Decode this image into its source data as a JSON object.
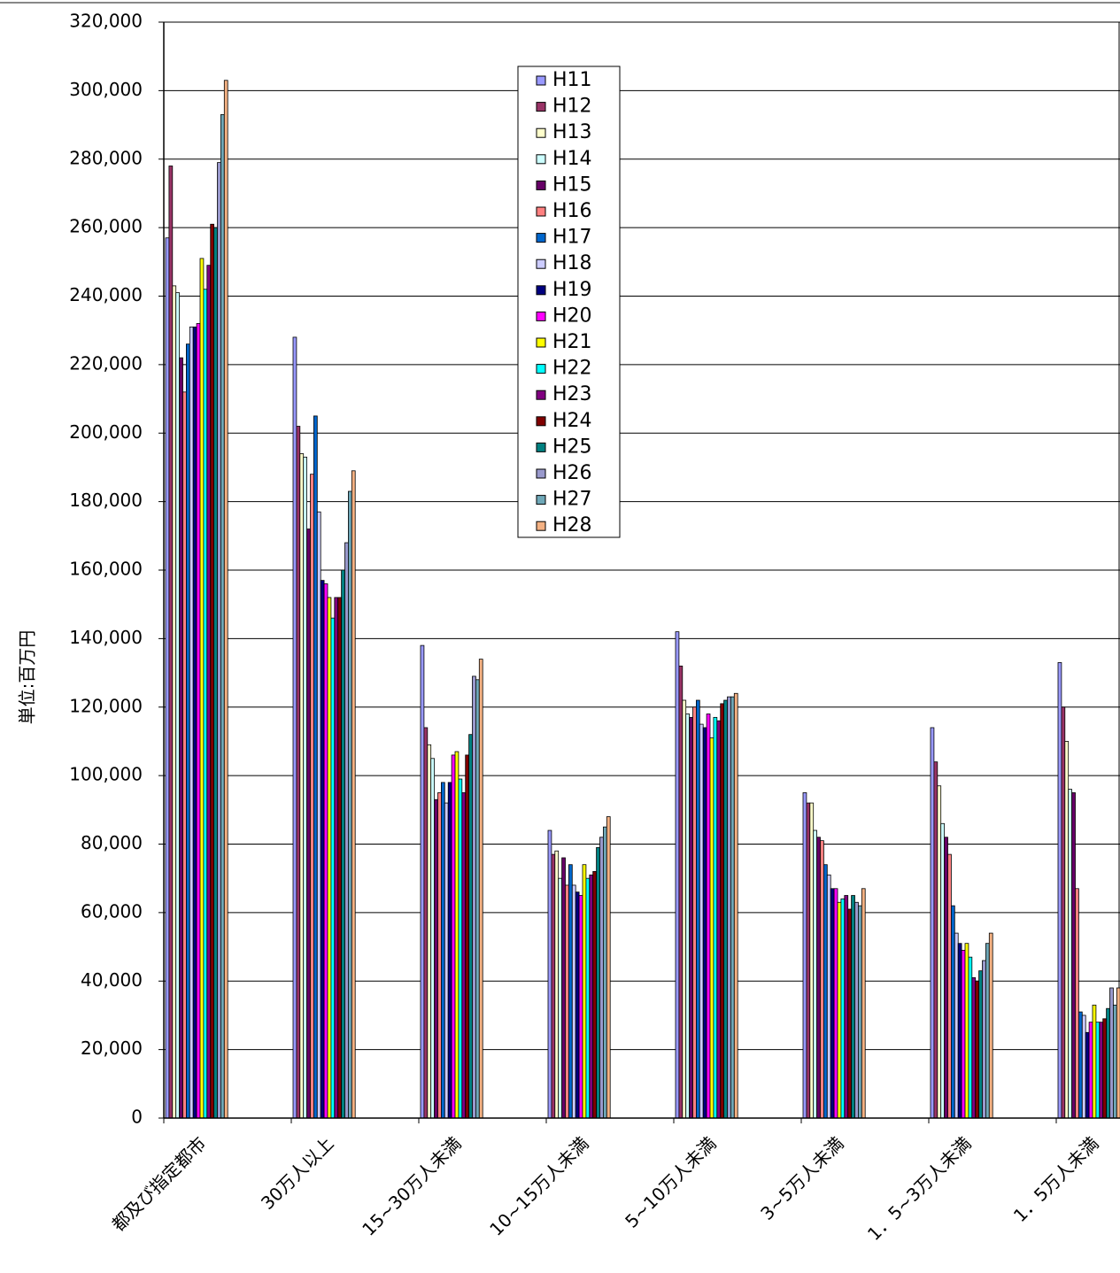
{
  "chart_data": {
    "type": "bar",
    "y_label": "単位:百万円",
    "categories": [
      "都及び指定都市",
      "30万人以上",
      "15~30万人未満",
      "10~15万人未満",
      "5~10万人未満",
      "3~5万人未満",
      "1．5~3万人未満",
      "1．5万人未満"
    ],
    "series": [
      {
        "name": "H11",
        "color": "#9999ff",
        "values": [
          257000,
          228000,
          138000,
          84000,
          142000,
          95000,
          114000,
          133000
        ]
      },
      {
        "name": "H12",
        "color": "#993366",
        "values": [
          278000,
          202000,
          114000,
          77000,
          132000,
          92000,
          104000,
          120000
        ]
      },
      {
        "name": "H13",
        "color": "#ffffcc",
        "values": [
          243000,
          194000,
          109000,
          78000,
          122000,
          92000,
          97000,
          110000
        ]
      },
      {
        "name": "H14",
        "color": "#ccffff",
        "values": [
          241000,
          193000,
          105000,
          70000,
          118000,
          84000,
          86000,
          96000
        ]
      },
      {
        "name": "H15",
        "color": "#660066",
        "values": [
          222000,
          172000,
          93000,
          76000,
          117000,
          82000,
          82000,
          95000
        ]
      },
      {
        "name": "H16",
        "color": "#ff8080",
        "values": [
          212000,
          188000,
          95000,
          68000,
          120000,
          81000,
          77000,
          67000
        ]
      },
      {
        "name": "H17",
        "color": "#0066cc",
        "values": [
          226000,
          205000,
          98000,
          74000,
          122000,
          74000,
          62000,
          31000
        ]
      },
      {
        "name": "H18",
        "color": "#ccccff",
        "values": [
          231000,
          177000,
          92000,
          68000,
          115000,
          71000,
          54000,
          30000
        ]
      },
      {
        "name": "H19",
        "color": "#000080",
        "values": [
          231000,
          157000,
          98000,
          66000,
          114000,
          67000,
          51000,
          25000
        ]
      },
      {
        "name": "H20",
        "color": "#ff00ff",
        "values": [
          232000,
          156000,
          106000,
          65000,
          118000,
          67000,
          49000,
          28000
        ]
      },
      {
        "name": "H21",
        "color": "#ffff00",
        "values": [
          251000,
          152000,
          107000,
          74000,
          111000,
          63000,
          51000,
          33000
        ]
      },
      {
        "name": "H22",
        "color": "#00ffff",
        "values": [
          242000,
          146000,
          99000,
          70000,
          117000,
          64000,
          47000,
          28000
        ]
      },
      {
        "name": "H23",
        "color": "#800080",
        "values": [
          249000,
          152000,
          95000,
          71000,
          116000,
          65000,
          41000,
          28000
        ]
      },
      {
        "name": "H24",
        "color": "#800000",
        "values": [
          261000,
          152000,
          106000,
          72000,
          121000,
          61000,
          40000,
          29000
        ]
      },
      {
        "name": "H25",
        "color": "#008080",
        "values": [
          260000,
          160000,
          112000,
          79000,
          122000,
          65000,
          43000,
          32000
        ]
      },
      {
        "name": "H26",
        "color": "#9999cc",
        "values": [
          279000,
          168000,
          129000,
          82000,
          123000,
          63000,
          46000,
          38000
        ]
      },
      {
        "name": "H27",
        "color": "#6fa8b8",
        "values": [
          293000,
          183000,
          128000,
          85000,
          123000,
          62000,
          51000,
          33000
        ]
      },
      {
        "name": "H28",
        "color": "#f4b183",
        "values": [
          303000,
          189000,
          134000,
          88000,
          124000,
          67000,
          54000,
          38000
        ]
      }
    ],
    "ylim": [
      0,
      320000
    ],
    "yticks": [
      0,
      {
        "value": 20000,
        "label": "20,000"
      },
      {
        "value": 40000,
        "label": "40,000"
      },
      {
        "value": 60000,
        "label": "60,000"
      },
      {
        "value": 80000,
        "label": "80,000"
      },
      {
        "value": 100000,
        "label": "100,000"
      },
      {
        "value": 120000,
        "label": "120,000"
      },
      {
        "value": 140000,
        "label": "140,000"
      },
      {
        "value": 160000,
        "label": "160,000"
      },
      {
        "value": 180000,
        "label": "180,000"
      },
      {
        "value": 200000,
        "label": "200,000"
      },
      {
        "value": 220000,
        "label": "220,000"
      },
      {
        "value": 240000,
        "label": "240,000"
      },
      {
        "value": 260000,
        "label": "260,000"
      },
      {
        "value": 280000,
        "label": "280,000"
      },
      {
        "value": 300000,
        "label": "300,000"
      },
      {
        "value": 320000,
        "label": "320,000"
      }
    ],
    "grid": true
  }
}
